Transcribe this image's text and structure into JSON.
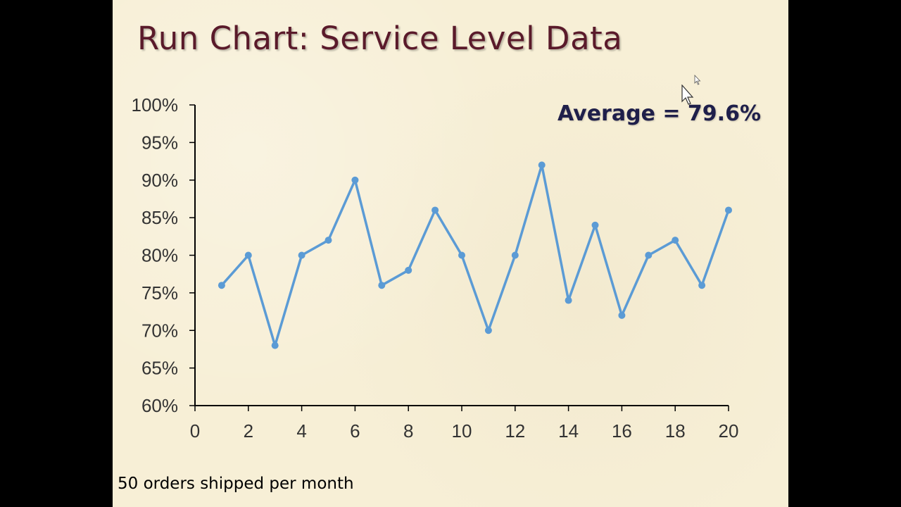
{
  "slide": {
    "title": "Run Chart: Service Level Data",
    "average_note": "Average = 79.6%",
    "footnote": "50 orders shipped per month"
  },
  "colors": {
    "background": "#f7efd6",
    "title": "#5a1a2a",
    "average_text": "#1f1f4a",
    "series": "#5b9bd5",
    "axis": "#000000",
    "tick_text": "#333333"
  },
  "icons": [
    "cursor-icon"
  ],
  "chart_data": {
    "type": "line",
    "title": "",
    "xlabel": "",
    "ylabel": "",
    "x": [
      1,
      2,
      3,
      4,
      5,
      6,
      7,
      8,
      9,
      10,
      11,
      12,
      13,
      14,
      15,
      16,
      17,
      18,
      19,
      20
    ],
    "series": [
      {
        "values": [
          0.76,
          0.8,
          0.68,
          0.8,
          0.82,
          0.9,
          0.76,
          0.78,
          0.86,
          0.8,
          0.7,
          0.8,
          0.92,
          0.74,
          0.84,
          0.72,
          0.8,
          0.82,
          0.76,
          0.86
        ]
      }
    ],
    "xlim": [
      0,
      20
    ],
    "ylim": [
      0.6,
      1.0
    ],
    "x_ticks": [
      0,
      2,
      4,
      6,
      8,
      10,
      12,
      14,
      16,
      18,
      20
    ],
    "x_tick_labels": [
      "0",
      "2",
      "4",
      "6",
      "8",
      "10",
      "12",
      "14",
      "16",
      "18",
      "20"
    ],
    "y_ticks": [
      0.6,
      0.65,
      0.7,
      0.75,
      0.8,
      0.85,
      0.9,
      0.95,
      1.0
    ],
    "y_tick_labels": [
      "60%",
      "65%",
      "70%",
      "75%",
      "80%",
      "85%",
      "90%",
      "95%",
      "100%"
    ],
    "grid": false,
    "markers": true
  }
}
